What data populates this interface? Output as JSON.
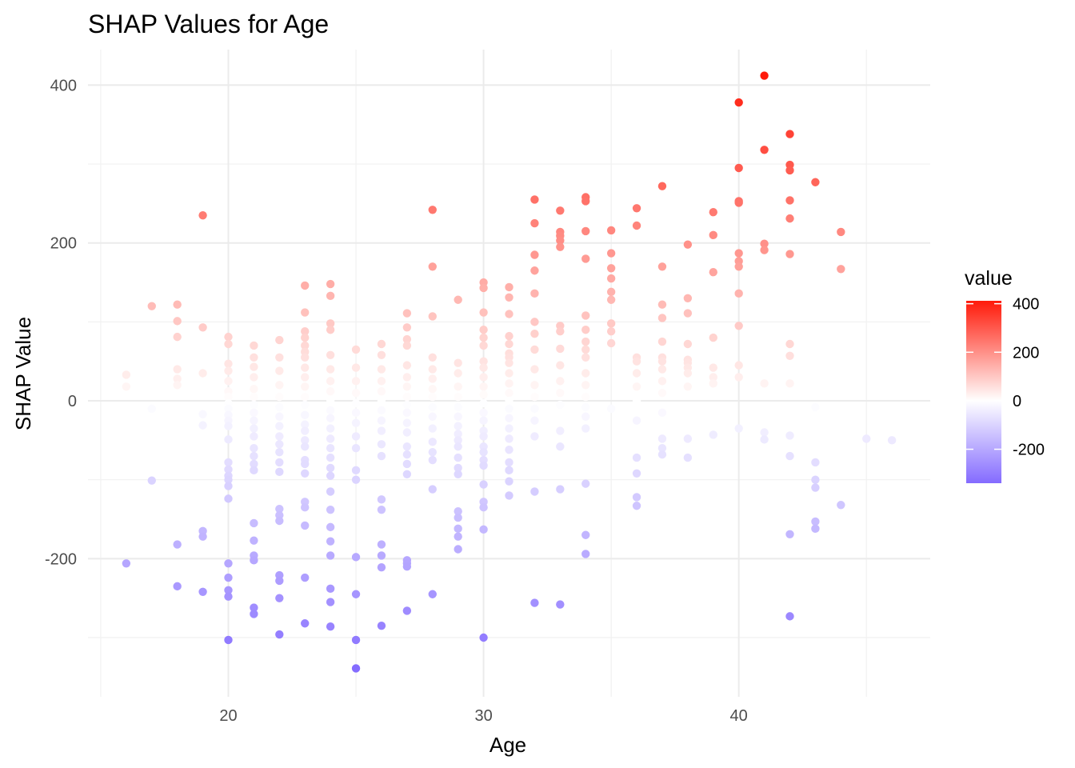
{
  "chart_data": {
    "type": "scatter",
    "title": "SHAP Values for Age",
    "xlabel": "Age",
    "ylabel": "SHAP Value",
    "xlim": [
      14.5,
      47.5
    ],
    "ylim": [
      -375,
      445
    ],
    "x_ticks": [
      20,
      30,
      40
    ],
    "y_ticks": [
      -200,
      0,
      200,
      400
    ],
    "grid": true,
    "legend": {
      "title": "value",
      "placement": "right",
      "ticks": [
        400,
        200,
        0,
        -200
      ],
      "range": [
        -340,
        412
      ],
      "colors": {
        "low": "#6a4cff",
        "mid": "#ffffff",
        "high": "#ff1a0a"
      }
    },
    "points": [
      [
        16,
        33
      ],
      [
        16,
        18
      ],
      [
        16,
        -206
      ],
      [
        17,
        120
      ],
      [
        17,
        -10
      ],
      [
        17,
        -101
      ],
      [
        18,
        122
      ],
      [
        18,
        101
      ],
      [
        18,
        81
      ],
      [
        18,
        40
      ],
      [
        18,
        28
      ],
      [
        18,
        20
      ],
      [
        18,
        -182
      ],
      [
        18,
        -235
      ],
      [
        19,
        235
      ],
      [
        19,
        93
      ],
      [
        19,
        35
      ],
      [
        19,
        -17
      ],
      [
        19,
        -31
      ],
      [
        19,
        -165
      ],
      [
        19,
        -172
      ],
      [
        19,
        -242
      ],
      [
        20,
        81
      ],
      [
        20,
        72
      ],
      [
        20,
        47
      ],
      [
        20,
        38
      ],
      [
        20,
        25
      ],
      [
        20,
        12
      ],
      [
        20,
        5
      ],
      [
        20,
        -3
      ],
      [
        20,
        -10
      ],
      [
        20,
        -18
      ],
      [
        20,
        -25
      ],
      [
        20,
        -32
      ],
      [
        20,
        -49
      ],
      [
        20,
        -78
      ],
      [
        20,
        -87
      ],
      [
        20,
        -95
      ],
      [
        20,
        -100
      ],
      [
        20,
        -108
      ],
      [
        20,
        -124
      ],
      [
        20,
        -206
      ],
      [
        20,
        -224
      ],
      [
        20,
        -240
      ],
      [
        20,
        -248
      ],
      [
        20,
        -303
      ],
      [
        21,
        70
      ],
      [
        21,
        55
      ],
      [
        21,
        43
      ],
      [
        21,
        30
      ],
      [
        21,
        15
      ],
      [
        21,
        5
      ],
      [
        21,
        -5
      ],
      [
        21,
        -15
      ],
      [
        21,
        -25
      ],
      [
        21,
        -35
      ],
      [
        21,
        -45
      ],
      [
        21,
        -60
      ],
      [
        21,
        -70
      ],
      [
        21,
        -80
      ],
      [
        21,
        -88
      ],
      [
        21,
        -155
      ],
      [
        21,
        -177
      ],
      [
        21,
        -196
      ],
      [
        21,
        -202
      ],
      [
        21,
        -262
      ],
      [
        21,
        -270
      ],
      [
        22,
        77
      ],
      [
        22,
        55
      ],
      [
        22,
        38
      ],
      [
        22,
        20
      ],
      [
        22,
        5
      ],
      [
        22,
        -8
      ],
      [
        22,
        -20
      ],
      [
        22,
        -32
      ],
      [
        22,
        -45
      ],
      [
        22,
        -55
      ],
      [
        22,
        -65
      ],
      [
        22,
        -78
      ],
      [
        22,
        -90
      ],
      [
        22,
        -137
      ],
      [
        22,
        -145
      ],
      [
        22,
        -152
      ],
      [
        22,
        -221
      ],
      [
        22,
        -228
      ],
      [
        22,
        -250
      ],
      [
        22,
        -296
      ],
      [
        23,
        146
      ],
      [
        23,
        112
      ],
      [
        23,
        88
      ],
      [
        23,
        80
      ],
      [
        23,
        70
      ],
      [
        23,
        62
      ],
      [
        23,
        55
      ],
      [
        23,
        42
      ],
      [
        23,
        30
      ],
      [
        23,
        18
      ],
      [
        23,
        5
      ],
      [
        23,
        -5
      ],
      [
        23,
        -18
      ],
      [
        23,
        -30
      ],
      [
        23,
        -38
      ],
      [
        23,
        -50
      ],
      [
        23,
        -58
      ],
      [
        23,
        -75
      ],
      [
        23,
        -80
      ],
      [
        23,
        -92
      ],
      [
        23,
        -128
      ],
      [
        23,
        -135
      ],
      [
        23,
        -158
      ],
      [
        23,
        -224
      ],
      [
        23,
        -282
      ],
      [
        24,
        148
      ],
      [
        24,
        133
      ],
      [
        24,
        98
      ],
      [
        24,
        90
      ],
      [
        24,
        58
      ],
      [
        24,
        40
      ],
      [
        24,
        25
      ],
      [
        24,
        12
      ],
      [
        24,
        0
      ],
      [
        24,
        -12
      ],
      [
        24,
        -22
      ],
      [
        24,
        -35
      ],
      [
        24,
        -48
      ],
      [
        24,
        -60
      ],
      [
        24,
        -72
      ],
      [
        24,
        -85
      ],
      [
        24,
        -95
      ],
      [
        24,
        -115
      ],
      [
        24,
        -138
      ],
      [
        24,
        -160
      ],
      [
        24,
        -178
      ],
      [
        24,
        -196
      ],
      [
        24,
        -238
      ],
      [
        24,
        -255
      ],
      [
        24,
        -286
      ],
      [
        25,
        65
      ],
      [
        25,
        42
      ],
      [
        25,
        25
      ],
      [
        25,
        10
      ],
      [
        25,
        -3
      ],
      [
        25,
        -15
      ],
      [
        25,
        -28
      ],
      [
        25,
        -45
      ],
      [
        25,
        -60
      ],
      [
        25,
        -88
      ],
      [
        25,
        -100
      ],
      [
        25,
        -198
      ],
      [
        25,
        -245
      ],
      [
        25,
        -303
      ],
      [
        25,
        -339
      ],
      [
        26,
        72
      ],
      [
        26,
        58
      ],
      [
        26,
        40
      ],
      [
        26,
        25
      ],
      [
        26,
        12
      ],
      [
        26,
        0
      ],
      [
        26,
        -12
      ],
      [
        26,
        -25
      ],
      [
        26,
        -38
      ],
      [
        26,
        -55
      ],
      [
        26,
        -70
      ],
      [
        26,
        -125
      ],
      [
        26,
        -138
      ],
      [
        26,
        -182
      ],
      [
        26,
        -196
      ],
      [
        26,
        -211
      ],
      [
        26,
        -285
      ],
      [
        27,
        111
      ],
      [
        27,
        93
      ],
      [
        27,
        78
      ],
      [
        27,
        70
      ],
      [
        27,
        45
      ],
      [
        27,
        30
      ],
      [
        27,
        18
      ],
      [
        27,
        5
      ],
      [
        27,
        -5
      ],
      [
        27,
        -15
      ],
      [
        27,
        -28
      ],
      [
        27,
        -40
      ],
      [
        27,
        -58
      ],
      [
        27,
        -68
      ],
      [
        27,
        -80
      ],
      [
        27,
        -93
      ],
      [
        27,
        -202
      ],
      [
        27,
        -206
      ],
      [
        27,
        -210
      ],
      [
        27,
        -266
      ],
      [
        28,
        242
      ],
      [
        28,
        170
      ],
      [
        28,
        107
      ],
      [
        28,
        55
      ],
      [
        28,
        40
      ],
      [
        28,
        28
      ],
      [
        28,
        15
      ],
      [
        28,
        5
      ],
      [
        28,
        -8
      ],
      [
        28,
        -20
      ],
      [
        28,
        -35
      ],
      [
        28,
        -52
      ],
      [
        28,
        -65
      ],
      [
        28,
        -75
      ],
      [
        28,
        -112
      ],
      [
        28,
        -245
      ],
      [
        29,
        128
      ],
      [
        29,
        48
      ],
      [
        29,
        35
      ],
      [
        29,
        18
      ],
      [
        29,
        5
      ],
      [
        29,
        -8
      ],
      [
        29,
        -20
      ],
      [
        29,
        -32
      ],
      [
        29,
        -42
      ],
      [
        29,
        -50
      ],
      [
        29,
        -58
      ],
      [
        29,
        -72
      ],
      [
        29,
        -85
      ],
      [
        29,
        -93
      ],
      [
        29,
        -140
      ],
      [
        29,
        -148
      ],
      [
        29,
        -162
      ],
      [
        29,
        -172
      ],
      [
        29,
        -188
      ],
      [
        30,
        150
      ],
      [
        30,
        143
      ],
      [
        30,
        112
      ],
      [
        30,
        90
      ],
      [
        30,
        80
      ],
      [
        30,
        70
      ],
      [
        30,
        50
      ],
      [
        30,
        42
      ],
      [
        30,
        30
      ],
      [
        30,
        18
      ],
      [
        30,
        8
      ],
      [
        30,
        -3
      ],
      [
        30,
        -15
      ],
      [
        30,
        -25
      ],
      [
        30,
        -38
      ],
      [
        30,
        -45
      ],
      [
        30,
        -58
      ],
      [
        30,
        -65
      ],
      [
        30,
        -75
      ],
      [
        30,
        -82
      ],
      [
        30,
        -106
      ],
      [
        30,
        -128
      ],
      [
        30,
        -135
      ],
      [
        30,
        -163
      ],
      [
        30,
        -300
      ],
      [
        31,
        144
      ],
      [
        31,
        131
      ],
      [
        31,
        110
      ],
      [
        31,
        82
      ],
      [
        31,
        72
      ],
      [
        31,
        60
      ],
      [
        31,
        55
      ],
      [
        31,
        48
      ],
      [
        31,
        35
      ],
      [
        31,
        22
      ],
      [
        31,
        10
      ],
      [
        31,
        0
      ],
      [
        31,
        -10
      ],
      [
        31,
        -22
      ],
      [
        31,
        -35
      ],
      [
        31,
        -48
      ],
      [
        31,
        -62
      ],
      [
        31,
        -78
      ],
      [
        31,
        -88
      ],
      [
        31,
        -102
      ],
      [
        31,
        -120
      ],
      [
        32,
        255
      ],
      [
        32,
        225
      ],
      [
        32,
        185
      ],
      [
        32,
        165
      ],
      [
        32,
        136
      ],
      [
        32,
        100
      ],
      [
        32,
        85
      ],
      [
        32,
        65
      ],
      [
        32,
        40
      ],
      [
        32,
        20
      ],
      [
        32,
        5
      ],
      [
        32,
        -10
      ],
      [
        32,
        -25
      ],
      [
        32,
        -45
      ],
      [
        32,
        -115
      ],
      [
        32,
        -256
      ],
      [
        33,
        241
      ],
      [
        33,
        214
      ],
      [
        33,
        209
      ],
      [
        33,
        203
      ],
      [
        33,
        195
      ],
      [
        33,
        95
      ],
      [
        33,
        88
      ],
      [
        33,
        66
      ],
      [
        33,
        45
      ],
      [
        33,
        25
      ],
      [
        33,
        10
      ],
      [
        33,
        -5
      ],
      [
        33,
        -38
      ],
      [
        33,
        -58
      ],
      [
        33,
        -112
      ],
      [
        33,
        -258
      ],
      [
        34,
        258
      ],
      [
        34,
        253
      ],
      [
        34,
        215
      ],
      [
        34,
        180
      ],
      [
        34,
        108
      ],
      [
        34,
        90
      ],
      [
        34,
        75
      ],
      [
        34,
        65
      ],
      [
        34,
        55
      ],
      [
        34,
        35
      ],
      [
        34,
        20
      ],
      [
        34,
        5
      ],
      [
        34,
        -8
      ],
      [
        34,
        -20
      ],
      [
        34,
        -35
      ],
      [
        34,
        -105
      ],
      [
        34,
        -170
      ],
      [
        34,
        -194
      ],
      [
        35,
        216
      ],
      [
        35,
        187
      ],
      [
        35,
        168
      ],
      [
        35,
        155
      ],
      [
        35,
        138
      ],
      [
        35,
        128
      ],
      [
        35,
        98
      ],
      [
        35,
        88
      ],
      [
        35,
        73
      ],
      [
        35,
        -10
      ],
      [
        36,
        244
      ],
      [
        36,
        222
      ],
      [
        36,
        55
      ],
      [
        36,
        50
      ],
      [
        36,
        35
      ],
      [
        36,
        18
      ],
      [
        36,
        0
      ],
      [
        36,
        -25
      ],
      [
        36,
        -72
      ],
      [
        36,
        -92
      ],
      [
        36,
        -122
      ],
      [
        36,
        -133
      ],
      [
        37,
        272
      ],
      [
        37,
        170
      ],
      [
        37,
        122
      ],
      [
        37,
        105
      ],
      [
        37,
        75
      ],
      [
        37,
        55
      ],
      [
        37,
        50
      ],
      [
        37,
        40
      ],
      [
        37,
        25
      ],
      [
        37,
        10
      ],
      [
        37,
        -15
      ],
      [
        37,
        -48
      ],
      [
        37,
        -60
      ],
      [
        37,
        -68
      ],
      [
        38,
        198
      ],
      [
        38,
        130
      ],
      [
        38,
        111
      ],
      [
        38,
        72
      ],
      [
        38,
        52
      ],
      [
        38,
        48
      ],
      [
        38,
        42
      ],
      [
        38,
        35
      ],
      [
        38,
        18
      ],
      [
        38,
        -48
      ],
      [
        38,
        -72
      ],
      [
        39,
        239
      ],
      [
        39,
        210
      ],
      [
        39,
        163
      ],
      [
        39,
        80
      ],
      [
        39,
        42
      ],
      [
        39,
        30
      ],
      [
        39,
        22
      ],
      [
        39,
        -43
      ],
      [
        40,
        378
      ],
      [
        40,
        295
      ],
      [
        40,
        253
      ],
      [
        40,
        251
      ],
      [
        40,
        187
      ],
      [
        40,
        177
      ],
      [
        40,
        170
      ],
      [
        40,
        136
      ],
      [
        40,
        95
      ],
      [
        40,
        45
      ],
      [
        40,
        30
      ],
      [
        40,
        -35
      ],
      [
        41,
        412
      ],
      [
        41,
        318
      ],
      [
        41,
        199
      ],
      [
        41,
        191
      ],
      [
        41,
        22
      ],
      [
        41,
        -40
      ],
      [
        41,
        -49
      ],
      [
        42,
        338
      ],
      [
        42,
        299
      ],
      [
        42,
        292
      ],
      [
        42,
        254
      ],
      [
        42,
        231
      ],
      [
        42,
        186
      ],
      [
        42,
        72
      ],
      [
        42,
        57
      ],
      [
        42,
        22
      ],
      [
        42,
        -44
      ],
      [
        42,
        -70
      ],
      [
        42,
        -169
      ],
      [
        42,
        -273
      ],
      [
        43,
        277
      ],
      [
        43,
        -8
      ],
      [
        43,
        -78
      ],
      [
        43,
        -100
      ],
      [
        43,
        -110
      ],
      [
        43,
        -153
      ],
      [
        43,
        -162
      ],
      [
        44,
        214
      ],
      [
        44,
        167
      ],
      [
        44,
        -132
      ],
      [
        45,
        -48
      ],
      [
        46,
        -50
      ]
    ]
  }
}
